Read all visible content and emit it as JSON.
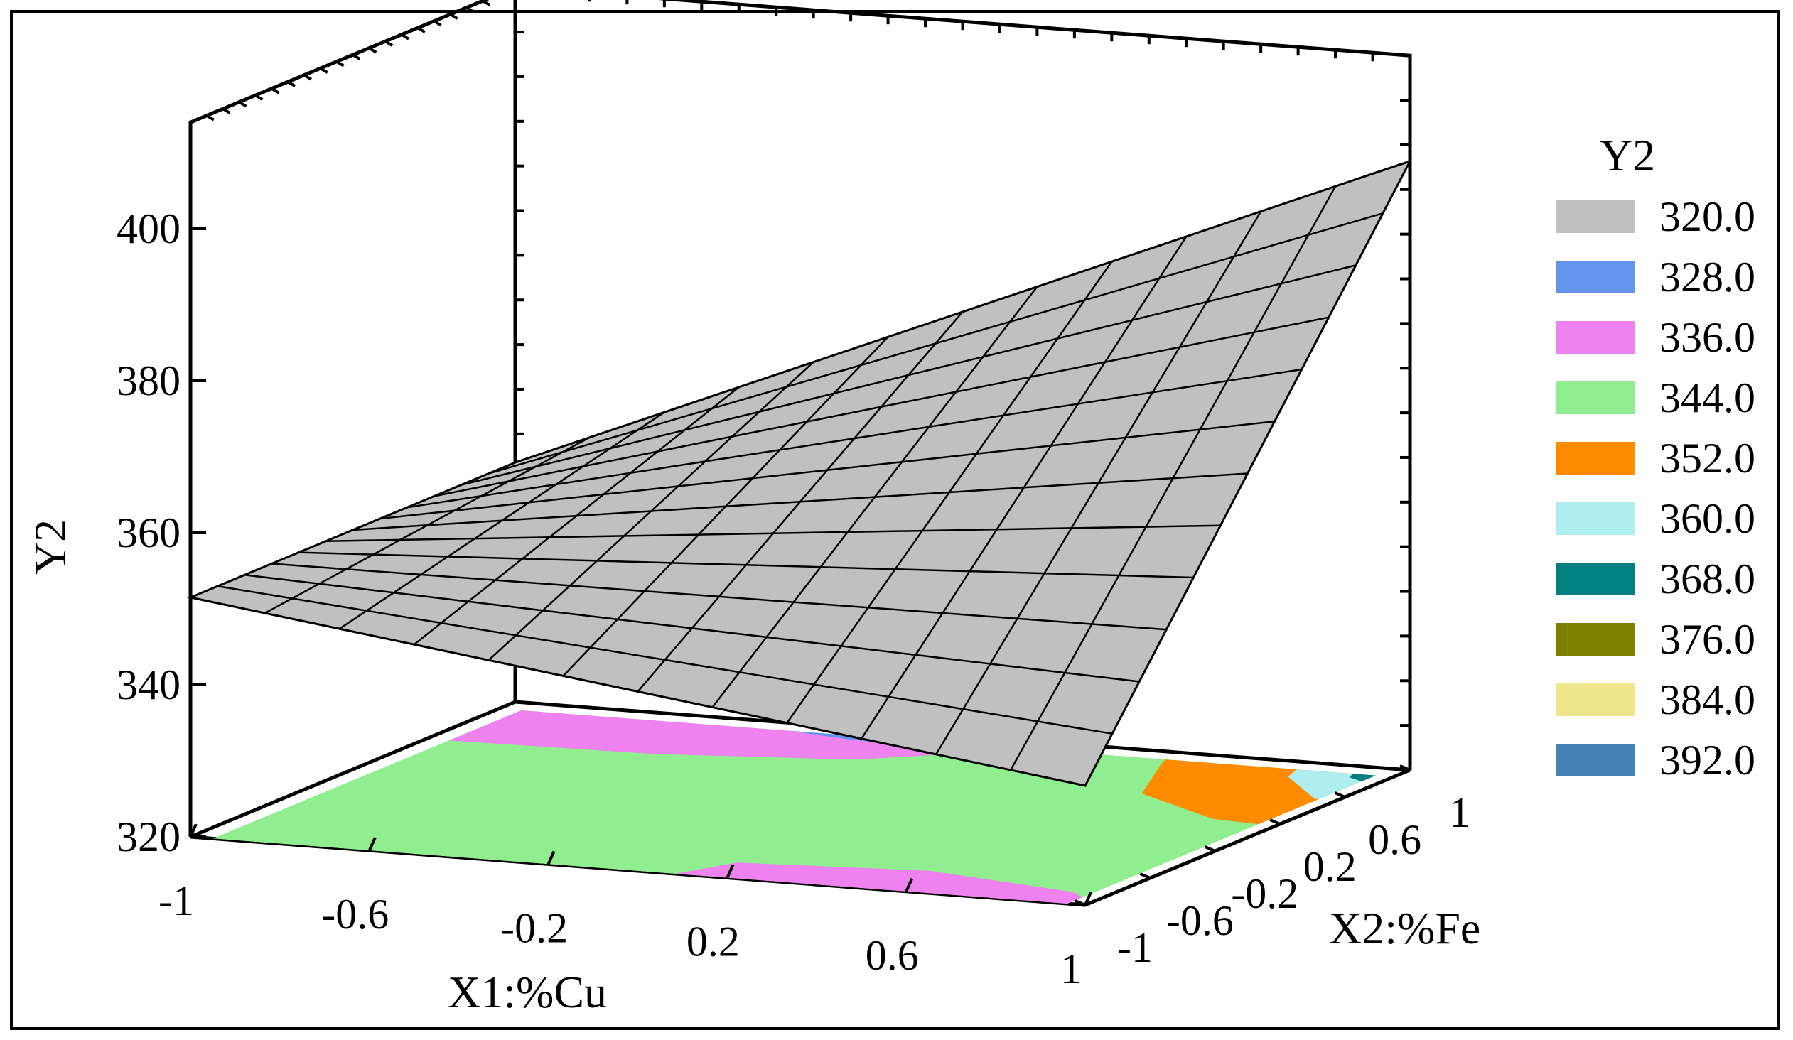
{
  "chart_data": {
    "type": "surface3d",
    "title": "",
    "xlabel": "X1:%Cu",
    "ylabel": "X2:%Fe",
    "zlabel": "Y2",
    "xlim": [
      -1,
      1
    ],
    "ylim": [
      -1,
      1
    ],
    "zlim": [
      320,
      400
    ],
    "x_ticks": [
      "-1",
      "-0.6",
      "-0.2",
      "0.2",
      "0.6",
      "1"
    ],
    "y_ticks": [
      "-1",
      "-0.6",
      "-0.2",
      "0.2",
      "0.6",
      "1"
    ],
    "z_ticks": [
      "320",
      "340",
      "360",
      "380",
      "400"
    ],
    "surface_corners": [
      {
        "x1": -1,
        "x2": -1,
        "y2": 351.5
      },
      {
        "x1": 1,
        "x2": -1,
        "y2": 335.7
      },
      {
        "x1": 1,
        "x2": 1,
        "y2": 400.1
      },
      {
        "x1": -1,
        "x2": 1,
        "y2": 351.5
      }
    ],
    "grid_divisions": 12,
    "surface_color": "#c0c0c0",
    "legend": {
      "title": "Y2",
      "placement": "right",
      "entries": [
        {
          "label": "320.0",
          "color": "#c0c0c0"
        },
        {
          "label": "328.0",
          "color": "#6495ed"
        },
        {
          "label": "336.0",
          "color": "#ee82ee"
        },
        {
          "label": "344.0",
          "color": "#90ee90"
        },
        {
          "label": "352.0",
          "color": "#ff8c00"
        },
        {
          "label": "360.0",
          "color": "#afeeee"
        },
        {
          "label": "368.0",
          "color": "#008080"
        },
        {
          "label": "376.0",
          "color": "#808000"
        },
        {
          "label": "384.0",
          "color": "#f0e68c"
        },
        {
          "label": "392.0",
          "color": "#4682b4"
        }
      ]
    }
  }
}
